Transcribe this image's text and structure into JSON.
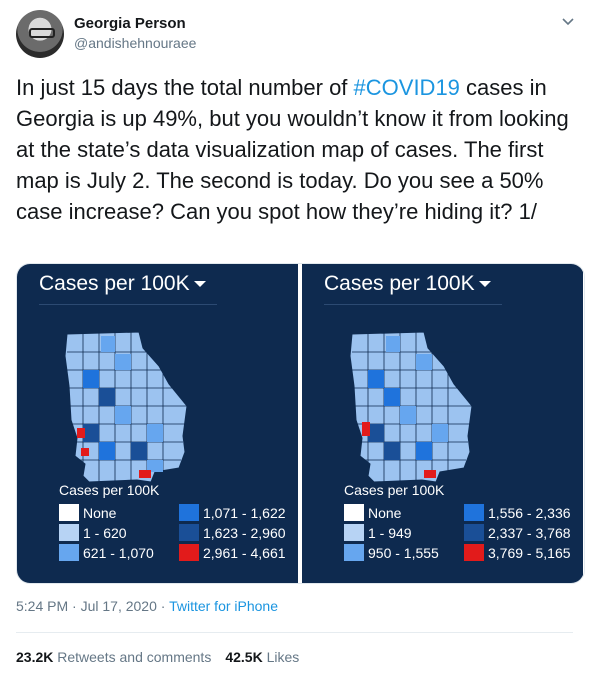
{
  "user": {
    "name": "Georgia Person",
    "handle": "@andishehnouraee"
  },
  "tweet": {
    "text_before": "In just 15 days the total number of ",
    "hashtag": "#COVID19",
    "text_after": " cases in Georgia is up 49%, but you wouldn’t know it from looking at the state’s data visualization map of cases. The first map is July 2. The second is today. Do you see a 50% case increase? Can you spot how they’re hiding it? 1/"
  },
  "maps": [
    {
      "title": "Cases per 100K",
      "legend_title": "Cases per 100K",
      "legend": [
        {
          "label": "None",
          "color": "#ffffff"
        },
        {
          "label": "1 - 620",
          "color": "#b7d3f4"
        },
        {
          "label": "621 - 1,070",
          "color": "#66a6ef"
        },
        {
          "label": "1,071 - 1,622",
          "color": "#1f73dc"
        },
        {
          "label": "1,623 - 2,960",
          "color": "#1a4f97"
        },
        {
          "label": "2,961 - 4,661",
          "color": "#e21b1b"
        }
      ]
    },
    {
      "title": "Cases per 100K",
      "legend_title": "Cases per 100K",
      "legend": [
        {
          "label": "None",
          "color": "#ffffff"
        },
        {
          "label": "1 - 949",
          "color": "#b7d3f4"
        },
        {
          "label": "950 - 1,555",
          "color": "#66a6ef"
        },
        {
          "label": "1,556 - 2,336",
          "color": "#1f73dc"
        },
        {
          "label": "2,337 - 3,768",
          "color": "#1a4f97"
        },
        {
          "label": "3,769 - 5,165",
          "color": "#e21b1b"
        }
      ]
    }
  ],
  "meta": {
    "time": "5:24 PM · Jul 17, 2020 · ",
    "source": "Twitter for iPhone"
  },
  "stats": {
    "retweets_count": "23.2K",
    "retweets_label": "Retweets and comments",
    "likes_count": "42.5K",
    "likes_label": "Likes"
  }
}
